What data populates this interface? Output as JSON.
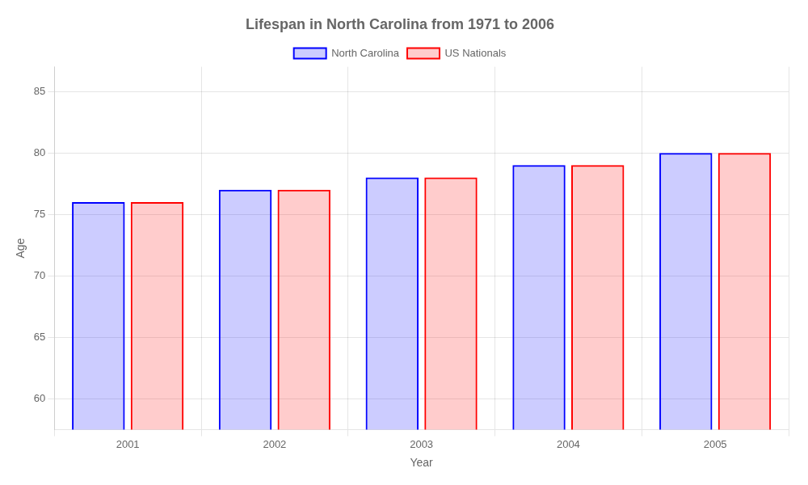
{
  "chart_data": {
    "type": "bar",
    "title": "Lifespan in North Carolina from 1971 to 2006",
    "xlabel": "Year",
    "ylabel": "Age",
    "categories": [
      "2001",
      "2002",
      "2003",
      "2004",
      "2005"
    ],
    "series": [
      {
        "name": "North Carolina",
        "color": "#0000ff",
        "values": [
          76,
          77,
          78,
          79,
          80
        ]
      },
      {
        "name": "US Nationals",
        "color": "#ff0000",
        "values": [
          76,
          77,
          78,
          79,
          80
        ]
      }
    ],
    "ylim": [
      57.5,
      87
    ],
    "yticks": [
      60,
      65,
      70,
      75,
      80,
      85
    ],
    "grid": true,
    "legend": "top"
  }
}
